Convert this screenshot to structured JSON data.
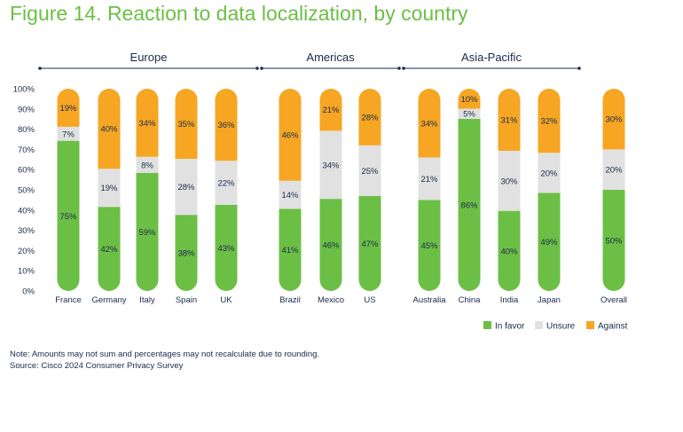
{
  "title": "Figure 14. Reaction to data localization, by country",
  "note": "Note: Amounts may not sum and percentages may not recalculate due to rounding.",
  "source": "Source: Cisco 2024 Consumer Privacy Survey",
  "colors": {
    "in_favor": "#6cbf45",
    "unsure": "#e1e1e1",
    "against": "#f6a623",
    "title": "#6cbf45",
    "text": "#1a2b4a"
  },
  "chart_data": {
    "type": "bar",
    "stacked": true,
    "ylim": [
      0,
      100
    ],
    "yticks": [
      "0%",
      "10%",
      "20%",
      "30%",
      "40%",
      "50%",
      "60%",
      "70%",
      "80%",
      "90%",
      "100%"
    ],
    "grid": false,
    "legend_position": "bottom-right",
    "groups": [
      {
        "label": "Europe",
        "categories": [
          "France",
          "Germany",
          "Italy",
          "Spain",
          "UK"
        ]
      },
      {
        "label": "Americas",
        "categories": [
          "Brazil",
          "Mexico",
          "US"
        ]
      },
      {
        "label": "Asia-Pacific",
        "categories": [
          "Australia",
          "China",
          "India",
          "Japan"
        ]
      },
      {
        "label": "",
        "categories": [
          "Overall"
        ]
      }
    ],
    "categories": [
      "France",
      "Germany",
      "Italy",
      "Spain",
      "UK",
      "Brazil",
      "Mexico",
      "US",
      "Australia",
      "China",
      "India",
      "Japan",
      "Overall"
    ],
    "series": [
      {
        "name": "In favor",
        "values": [
          75,
          42,
          59,
          38,
          43,
          41,
          46,
          47,
          45,
          86,
          40,
          49,
          50
        ],
        "labels": [
          "75%",
          "42%",
          "59%",
          "38%",
          "43%",
          "41%",
          "46%",
          "47%",
          "45%",
          "86%",
          "40%",
          "49%",
          "50%"
        ]
      },
      {
        "name": "Unsure",
        "values": [
          7,
          19,
          8,
          28,
          22,
          14,
          34,
          25,
          21,
          5,
          30,
          20,
          20
        ],
        "labels": [
          "7%",
          "19%",
          "8%",
          "28%",
          "22%",
          "14%",
          "34%",
          "25%",
          "21%",
          "5%",
          "30%",
          "20%",
          "20%"
        ]
      },
      {
        "name": "Against",
        "values": [
          19,
          40,
          34,
          35,
          36,
          46,
          21,
          28,
          34,
          10,
          31,
          32,
          30
        ],
        "labels": [
          "19%",
          "40%",
          "34%",
          "35%",
          "36%",
          "46%",
          "21%",
          "28%",
          "34%",
          "10%",
          "31%",
          "32%",
          "30%"
        ]
      }
    ]
  }
}
